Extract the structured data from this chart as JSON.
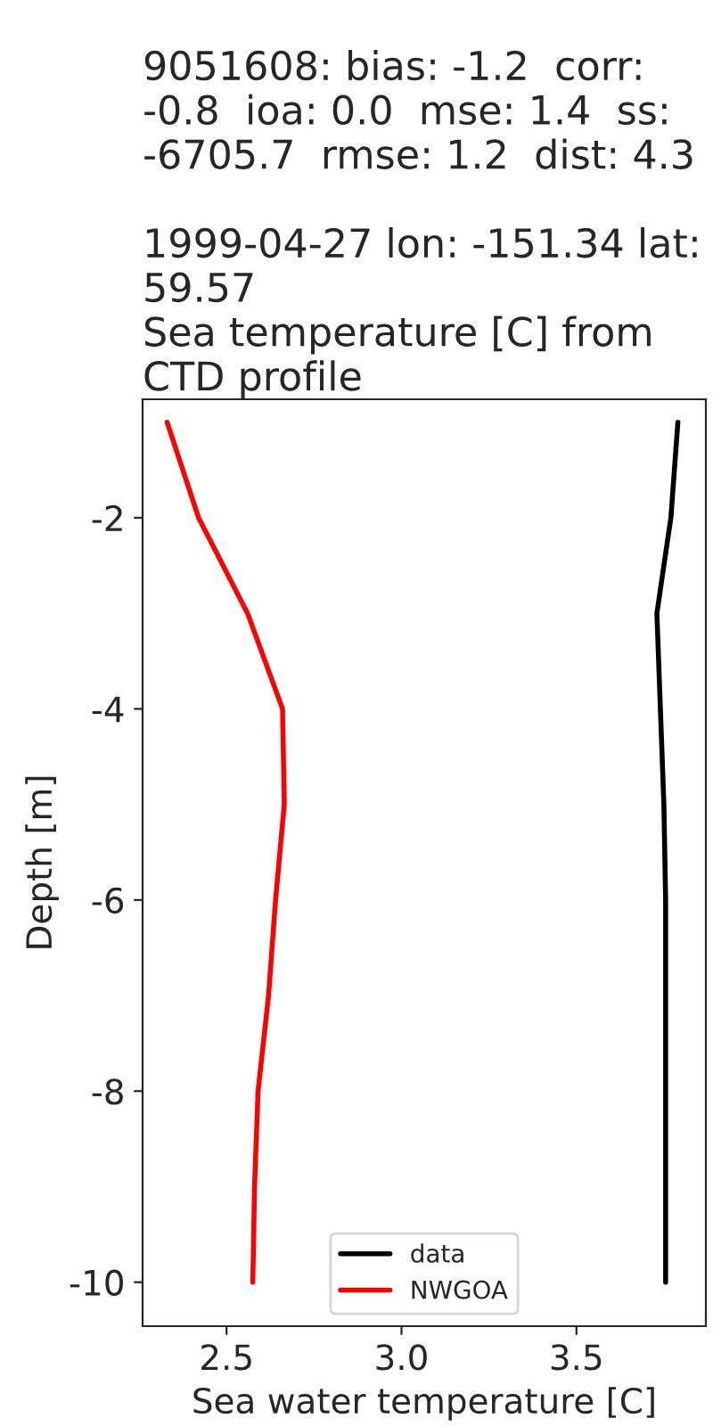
{
  "chart_data": {
    "type": "line",
    "title": "9051608: bias: -1.2  corr: -0.8  ioa: 0.0  mse: 1.4  ss: -6705.7  rmse: 1.2  dist: 4.3\n\n1999-04-27 lon: -151.34 lat: 59.57\nSea temperature [C] from CTD profile",
    "xlabel": "Sea water temperature [C]",
    "ylabel": "Depth [m]",
    "series": [
      {
        "name": "data",
        "color": "#000000",
        "x": [
          3.79,
          3.77,
          3.73,
          3.74,
          3.75,
          3.755,
          3.755,
          3.755,
          3.755,
          3.755
        ],
        "values": [
          -1,
          -2,
          -3,
          -4,
          -5,
          -6,
          -7,
          -8,
          -9,
          -10
        ]
      },
      {
        "name": "NWGOA",
        "color": "#ff0000",
        "x": [
          2.33,
          2.42,
          2.56,
          2.66,
          2.665,
          2.64,
          2.62,
          2.59,
          2.58,
          2.575
        ],
        "values": [
          -1,
          -2,
          -3,
          -4,
          -5,
          -6,
          -7,
          -8,
          -9,
          -10
        ]
      }
    ],
    "xlim": [
      2.26,
      3.87
    ],
    "xticks": [
      2.5,
      {
        "value": 3,
        "label": "3.0"
      },
      3.5
    ],
    "ylim": [
      -10.46,
      -0.76
    ],
    "yticks": [
      -10,
      -8,
      -6,
      -4,
      -2
    ],
    "grid": false,
    "legend": "bottom"
  }
}
